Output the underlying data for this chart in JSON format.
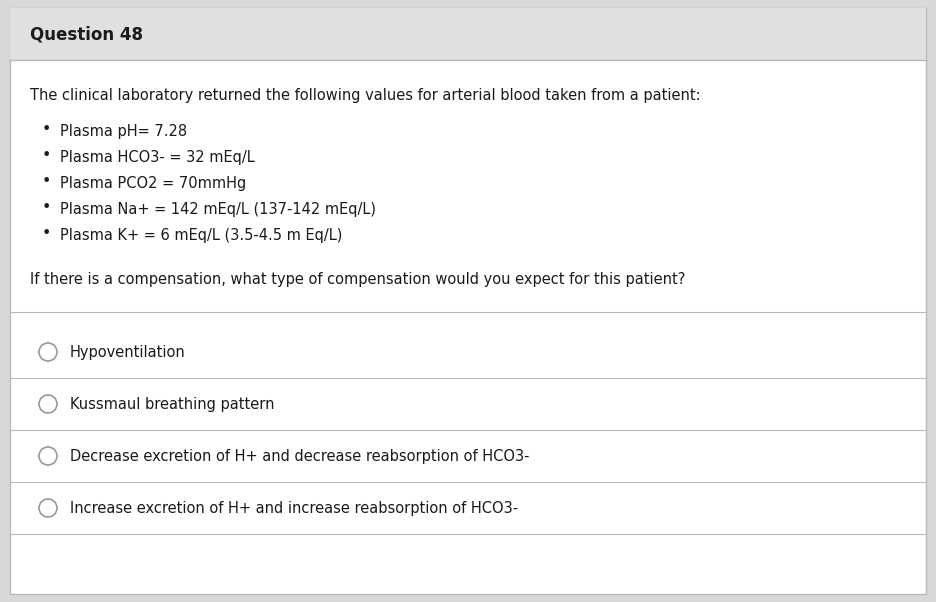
{
  "title": "Question 48",
  "background_color": "#d8d8d8",
  "card_color": "#ffffff",
  "header_bg": "#e0e0e0",
  "border_color": "#b8b8b8",
  "text_color": "#1a1a1a",
  "intro_text": "The clinical laboratory returned the following values for arterial blood taken from a patient:",
  "bullet_points": [
    "Plasma pH= 7.28",
    "Plasma HCO3- = 32 mEq/L",
    "Plasma PCO2 = 70mmHg",
    "Plasma Na+ = 142 mEq/L (137-142 mEq/L)",
    "Plasma K+ = 6 mEq/L (3.5-4.5 m Eq/L)"
  ],
  "question_text": "If there is a compensation, what type of compensation would you expect for this patient?",
  "options": [
    "Hypoventilation",
    "Kussmaul breathing pattern",
    "Decrease excretion of H+ and decrease reabsorption of HCO3-",
    "Increase excretion of H+ and increase reabsorption of HCO3-"
  ],
  "title_fontsize": 12,
  "body_fontsize": 10.5,
  "option_fontsize": 10.5
}
